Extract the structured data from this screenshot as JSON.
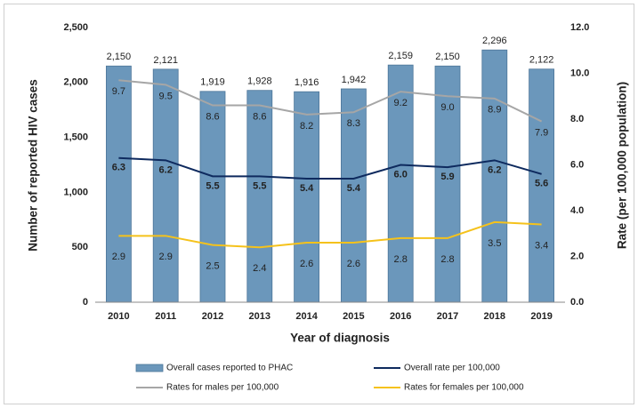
{
  "chart_data": {
    "type": "combo",
    "xlabel": "Year of diagnosis",
    "ylabel": "Number of reported HIV cases",
    "y2label": "Rate (per 100,000 population)",
    "categories": [
      "2010",
      "2011",
      "2012",
      "2013",
      "2014",
      "2015",
      "2016",
      "2017",
      "2018",
      "2019"
    ],
    "ylim": [
      0,
      2500
    ],
    "yticks": [
      0,
      500,
      {
        "value": 1000,
        "label": "1,000"
      },
      {
        "value": 1500,
        "label": "1,500"
      },
      {
        "value": 2000,
        "label": "2,000"
      },
      {
        "value": 2500,
        "label": "2,500"
      }
    ],
    "y2lim": [
      0,
      12
    ],
    "y2ticks": [
      {
        "value": 0,
        "label": "0.0"
      },
      {
        "value": 2,
        "label": "2.0"
      },
      {
        "value": 4,
        "label": "4.0"
      },
      {
        "value": 6,
        "label": "6.0"
      },
      {
        "value": 8,
        "label": "8.0"
      },
      {
        "value": 10,
        "label": "10.0"
      },
      {
        "value": 12,
        "label": "12.0"
      }
    ],
    "series": [
      {
        "name": "Overall cases reported to PHAC",
        "type": "bar",
        "color": "#6b97bb",
        "values": [
          2150,
          2121,
          1919,
          1928,
          1916,
          1942,
          2159,
          2150,
          2296,
          2122
        ],
        "value_labels": [
          "2,150",
          "2,121",
          "1,919",
          "1,928",
          "1,916",
          "1,942",
          "2,159",
          "2,150",
          "2,296",
          "2,122"
        ]
      },
      {
        "name": "Overall rate per 100,000",
        "type": "line",
        "axis": "y2",
        "color": "#0e2a5e",
        "values": [
          6.3,
          6.2,
          5.5,
          5.5,
          5.4,
          5.4,
          6.0,
          5.9,
          6.2,
          5.6
        ],
        "value_labels": [
          "6.3",
          "6.2",
          "5.5",
          "5.5",
          "5.4",
          "5.4",
          "6.0",
          "5.9",
          "6.2",
          "5.6"
        ]
      },
      {
        "name": "Rates for males per 100,000",
        "type": "line",
        "axis": "y2",
        "color": "#a6a6a6",
        "values": [
          9.7,
          9.5,
          8.6,
          8.6,
          8.2,
          8.3,
          9.2,
          9.0,
          8.9,
          7.9
        ],
        "value_labels": [
          "9.7",
          "9.5",
          "8.6",
          "8.6",
          "8.2",
          "8.3",
          "9.2",
          "9.0",
          "8.9",
          "7.9"
        ]
      },
      {
        "name": "Rates for females per 100,000",
        "type": "line",
        "axis": "y2",
        "color": "#f5c21b",
        "values": [
          2.9,
          2.9,
          2.5,
          2.4,
          2.6,
          2.6,
          2.8,
          2.8,
          3.5,
          3.4
        ],
        "value_labels": [
          "2.9",
          "2.9",
          "2.5",
          "2.4",
          "2.6",
          "2.6",
          "2.8",
          "2.8",
          "3.5",
          "3.4"
        ]
      }
    ]
  }
}
